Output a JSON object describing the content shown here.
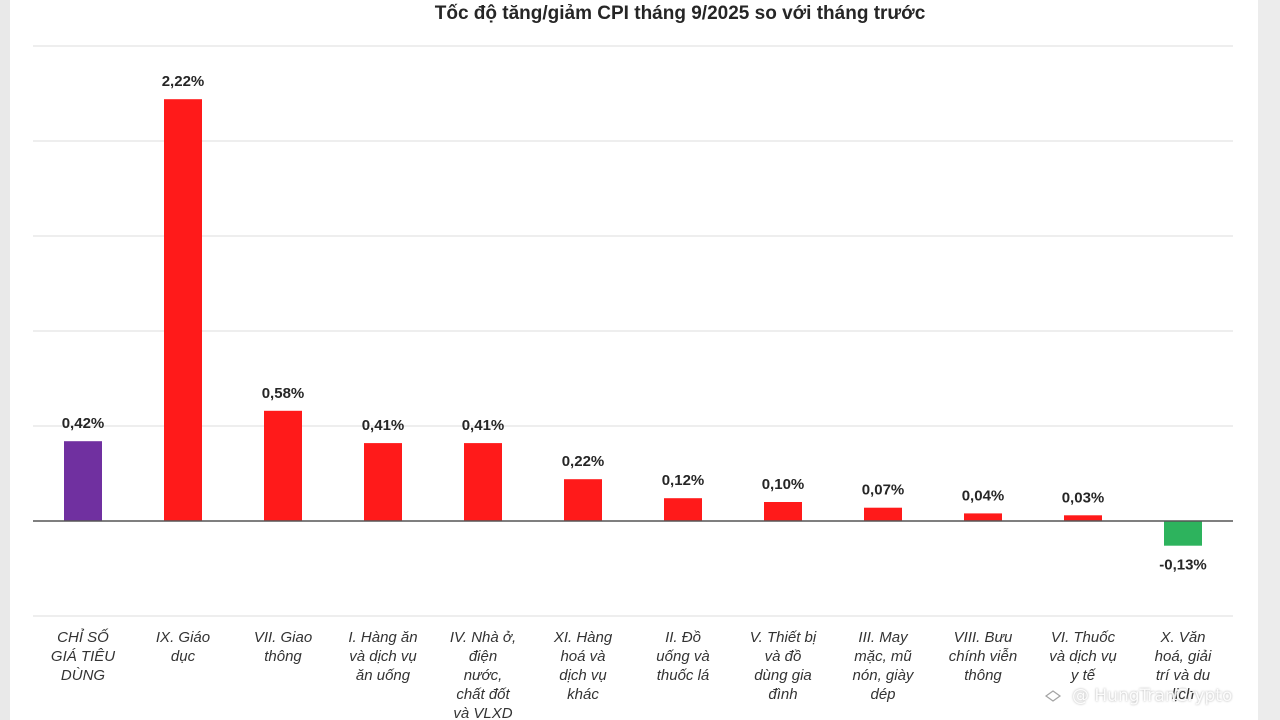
{
  "chart_data": {
    "type": "bar",
    "title": "Tốc độ tăng/giảm CPI tháng 9/2025 so với tháng trước",
    "xlabel": "",
    "ylabel": "",
    "ylim": [
      -0.5,
      2.5
    ],
    "grid": true,
    "legend": "none",
    "categories": [
      "CHỈ SỐ GIÁ TIÊU DÙNG",
      "IX. Giáo dục",
      "VII. Giao thông",
      "I. Hàng ăn và dịch vụ ăn uống",
      "IV. Nhà ở, điện nước, chất đốt và VLXD",
      "XI. Hàng hoá và dịch vụ khác",
      "II. Đồ uống và thuốc lá",
      "V. Thiết bị và đồ dùng gia đình",
      "III. May mặc, mũ nón, giày dép",
      "VIII. Bưu chính viễn thông",
      "VI. Thuốc và dịch vụ y tế",
      "X. Văn hoá, giải trí và du lịch"
    ],
    "category_lines": [
      [
        "CHỈ SỐ",
        "GIÁ TIÊU",
        "DÙNG"
      ],
      [
        "IX. Giáo",
        "dục"
      ],
      [
        "VII. Giao",
        "thông"
      ],
      [
        "I. Hàng ăn",
        "và dịch vụ",
        "ăn uống"
      ],
      [
        "IV. Nhà ở,",
        "điện",
        "nước,",
        "chất đốt",
        "và VLXD"
      ],
      [
        "XI. Hàng",
        "hoá và",
        "dịch vụ",
        "khác"
      ],
      [
        "II. Đồ",
        "uống và",
        "thuốc lá"
      ],
      [
        "V. Thiết bị",
        "và đồ",
        "dùng gia",
        "đình"
      ],
      [
        "III. May",
        "mặc, mũ",
        "nón, giày",
        "dép"
      ],
      [
        "VIII. Bưu",
        "chính viễn",
        "thông"
      ],
      [
        "VI. Thuốc",
        "và dịch vụ",
        "y tế"
      ],
      [
        "X. Văn",
        "hoá, giải",
        "trí và du",
        "lịch"
      ]
    ],
    "values": [
      0.42,
      2.22,
      0.58,
      0.41,
      0.41,
      0.22,
      0.12,
      0.1,
      0.07,
      0.04,
      0.03,
      -0.13
    ],
    "labels": [
      "0,42%",
      "2,22%",
      "0,58%",
      "0,41%",
      "0,41%",
      "0,22%",
      "0,12%",
      "0,10%",
      "0,07%",
      "0,04%",
      "0,03%",
      "-0,13%"
    ],
    "colors": [
      "#7030a0",
      "#ff1a1a",
      "#ff1a1a",
      "#ff1a1a",
      "#ff1a1a",
      "#ff1a1a",
      "#ff1a1a",
      "#ff1a1a",
      "#ff1a1a",
      "#ff1a1a",
      "#ff1a1a",
      "#2db35d"
    ]
  },
  "watermark": {
    "icon": "diamond-logo-icon",
    "text": "@ HungTranCrypto"
  }
}
